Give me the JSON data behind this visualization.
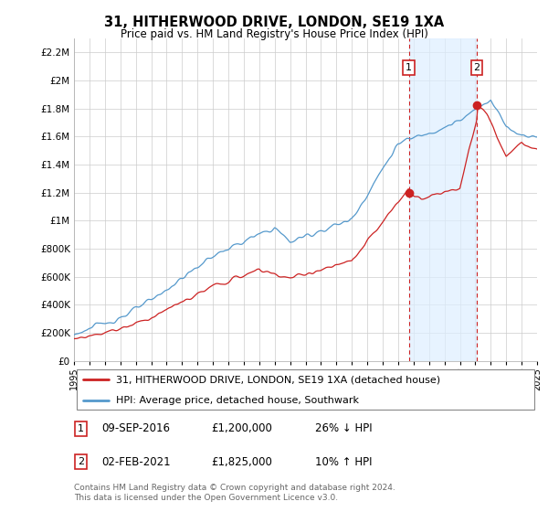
{
  "title": "31, HITHERWOOD DRIVE, LONDON, SE19 1XA",
  "subtitle": "Price paid vs. HM Land Registry's House Price Index (HPI)",
  "legend_line1": "31, HITHERWOOD DRIVE, LONDON, SE19 1XA (detached house)",
  "legend_line2": "HPI: Average price, detached house, Southwark",
  "annotation1_label": "1",
  "annotation1_date": "09-SEP-2016",
  "annotation1_price": "£1,200,000",
  "annotation1_hpi": "26% ↓ HPI",
  "annotation2_label": "2",
  "annotation2_date": "02-FEB-2021",
  "annotation2_price": "£1,825,000",
  "annotation2_hpi": "10% ↑ HPI",
  "footer": "Contains HM Land Registry data © Crown copyright and database right 2024.\nThis data is licensed under the Open Government Licence v3.0.",
  "hpi_color": "#5599cc",
  "sale_color": "#cc2222",
  "shade_color": "#ddeeff",
  "annotation_box_color": "#cc2222",
  "background_color": "#ffffff",
  "grid_color": "#cccccc",
  "ylim": [
    0,
    2300000
  ],
  "yticks": [
    0,
    200000,
    400000,
    600000,
    800000,
    1000000,
    1200000,
    1400000,
    1600000,
    1800000,
    2000000,
    2200000
  ],
  "ytick_labels": [
    "£0",
    "£200K",
    "£400K",
    "£600K",
    "£800K",
    "£1M",
    "£1.2M",
    "£1.4M",
    "£1.6M",
    "£1.8M",
    "£2M",
    "£2.2M"
  ],
  "sale1_x": 2016.69,
  "sale1_y": 1200000,
  "sale2_x": 2021.09,
  "sale2_y": 1825000,
  "xmin": 1995,
  "xmax": 2025
}
